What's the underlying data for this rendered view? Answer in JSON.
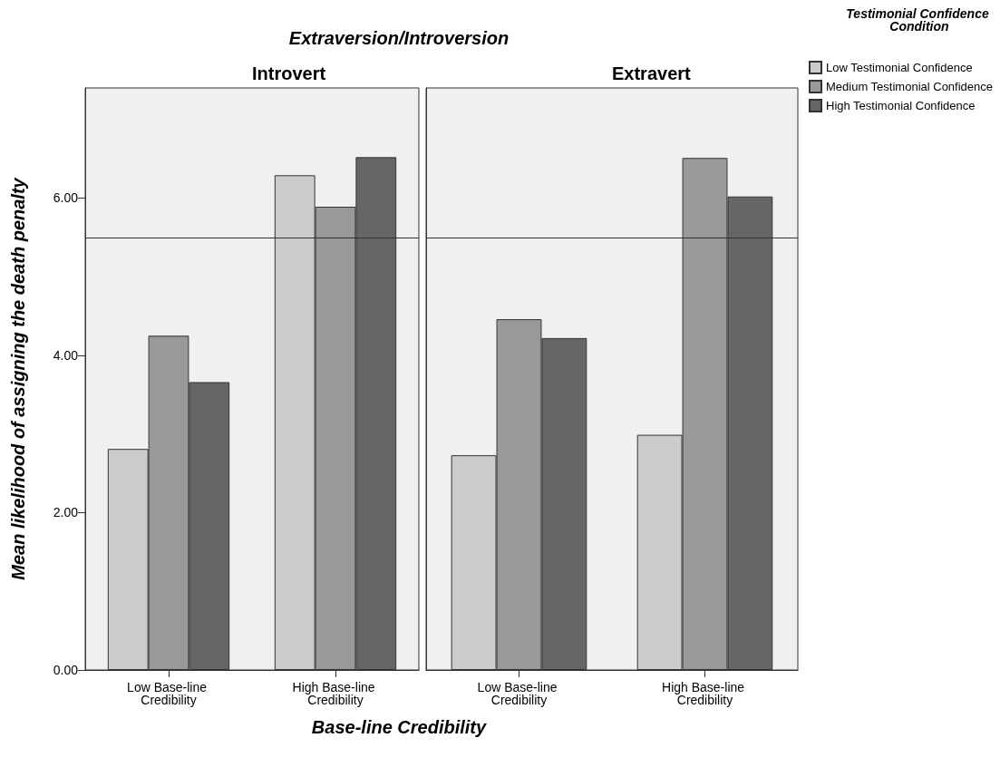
{
  "chart_data": [
    {
      "type": "bar",
      "title": "Introvert",
      "ylabel": "Mean likelihood of assigning the death penalty",
      "xlabel": "Base-line Credibility",
      "annotations": [
        "Extraversion/Introversion"
      ],
      "categories": [
        "Low Base-line Credibility",
        "High Base-line Credibility"
      ],
      "series": [
        {
          "color": "#cccccc",
          "values": [
            2.81,
            6.29
          ]
        },
        {
          "color": "#999999",
          "values": [
            4.25,
            5.89
          ]
        },
        {
          "color": "#666666",
          "values": [
            3.66,
            6.52
          ]
        }
      ],
      "ylim": [
        0,
        7.4
      ],
      "yticks": [
        {
          "value": 0,
          "label": "0.00"
        },
        {
          "value": 2,
          "label": "2.00"
        },
        {
          "value": 4,
          "label": "4.00"
        },
        {
          "value": 6,
          "label": "6.00"
        }
      ],
      "ref_lines": [
        {
          "axis": "y",
          "value": 5.5
        }
      ],
      "grid": false,
      "legend": false
    },
    {
      "type": "bar",
      "title": "Extravert",
      "legend_title": "Testimonial Confidence Condition",
      "categories": [
        "Low Base-line Credibility",
        "High Base-line Credibility"
      ],
      "series": [
        {
          "name": "Low Testimonial Confidence",
          "color": "#cccccc",
          "values": [
            2.73,
            2.99
          ]
        },
        {
          "name": "Medium Testimonial Confidence",
          "color": "#999999",
          "values": [
            4.46,
            6.51
          ]
        },
        {
          "name": "High Testimonial Confidence",
          "color": "#666666",
          "values": [
            4.22,
            6.02
          ]
        }
      ],
      "ylim": [
        0,
        7.4
      ],
      "ref_lines": [
        {
          "axis": "y",
          "value": 5.5
        }
      ],
      "grid": false,
      "legend": "top right",
      "tick_labels": "x"
    }
  ]
}
